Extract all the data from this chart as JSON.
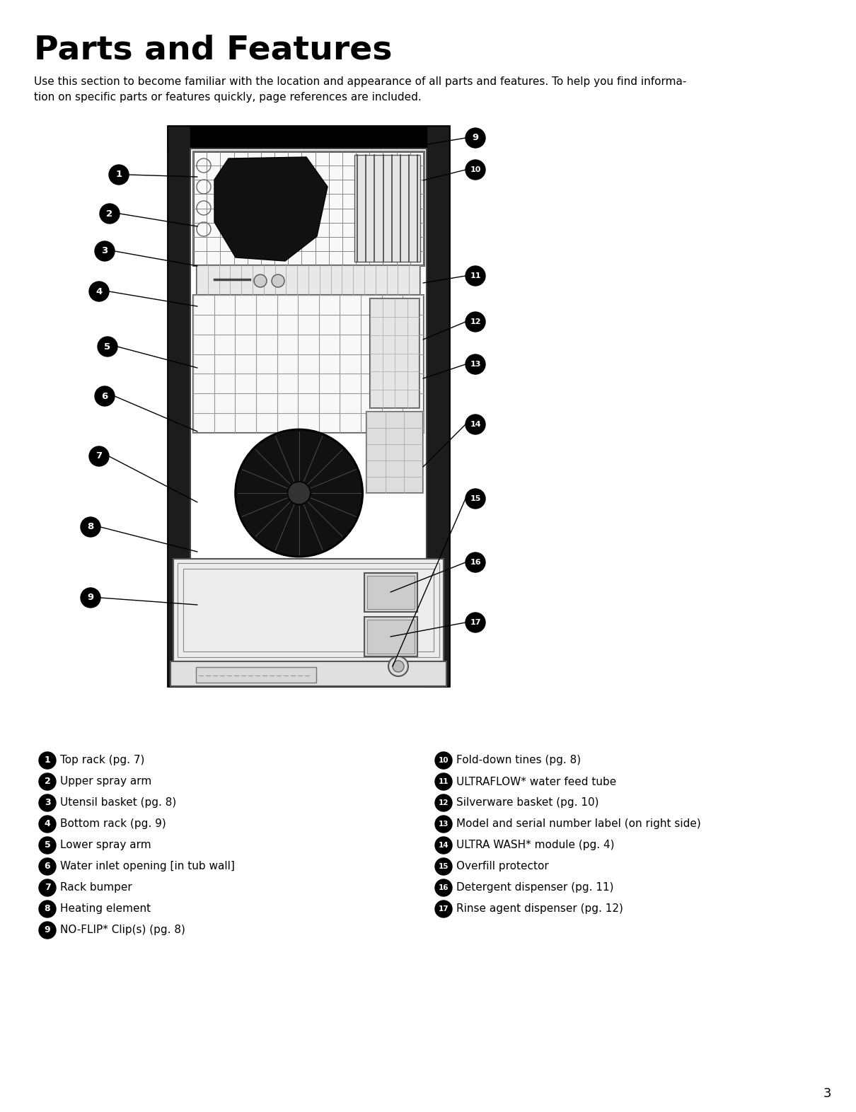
{
  "title": "Parts and Features",
  "subtitle": "Use this section to become familiar with the location and appearance of all parts and features. To help you find informa-\ntion on specific parts or features quickly, page references are included.",
  "page_number": "3",
  "bg_color": "#ffffff",
  "left_items": [
    {
      "num": "1",
      "text": "Top rack (pg. 7)"
    },
    {
      "num": "2",
      "text": "Upper spray arm"
    },
    {
      "num": "3",
      "text": "Utensil basket (pg. 8)"
    },
    {
      "num": "4",
      "text": "Bottom rack (pg. 9)"
    },
    {
      "num": "5",
      "text": "Lower spray arm"
    },
    {
      "num": "6",
      "text": "Water inlet opening [in tub wall]"
    },
    {
      "num": "7",
      "text": "Rack bumper"
    },
    {
      "num": "8",
      "text": "Heating element"
    },
    {
      "num": "9",
      "text": "NO-FLIP* Clip(s) (pg. 8)"
    }
  ],
  "right_items": [
    {
      "num": "10",
      "text": "Fold-down tines (pg. 8)"
    },
    {
      "num": "11",
      "text": "ULTRAFLOW* water feed tube"
    },
    {
      "num": "12",
      "text": "Silverware basket (pg. 10)"
    },
    {
      "num": "13",
      "text": "Model and serial number label (on right side)"
    },
    {
      "num": "14",
      "text": "ULTRA WASH* module (pg. 4)"
    },
    {
      "num": "15",
      "text": "Overfill protector"
    },
    {
      "num": "16",
      "text": "Detergent dispenser (pg. 11)"
    },
    {
      "num": "17",
      "text": "Rinse agent dispenser (pg. 12)"
    }
  ]
}
